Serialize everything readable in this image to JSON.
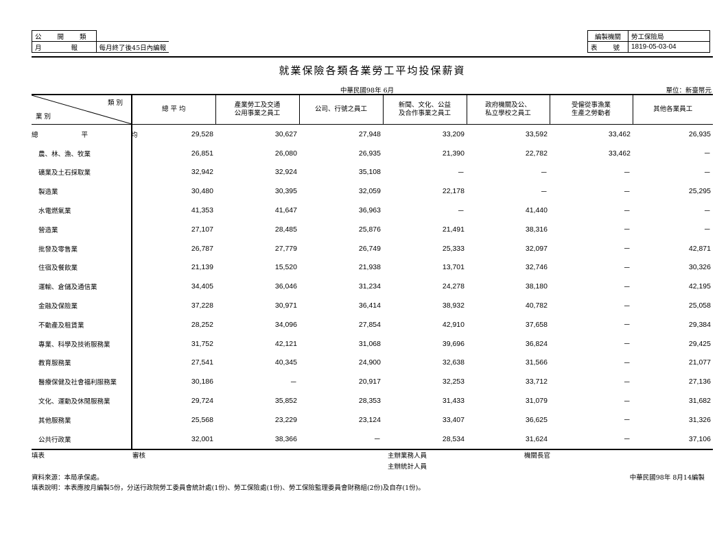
{
  "header": {
    "left_box": [
      {
        "label": "公 開 類",
        "value": ""
      },
      {
        "label": "月 報",
        "value": "每月終了後45日內編報"
      }
    ],
    "right_box": [
      {
        "label": "編製機關",
        "value": "勞工保險局"
      },
      {
        "label": "表 號",
        "value": "1819-05-03-04"
      }
    ]
  },
  "title": "就業保險各類各業勞工平均投保薪資",
  "period": "中華民國98年 6月",
  "unit": "單位：新臺幣元",
  "table": {
    "corner_top": "類 別",
    "corner_bottom": "業 別",
    "columns": [
      "總 平 均",
      "產業勞工及交通\n公用事業之員工",
      "公司、行號之員工",
      "新聞、文化、公益\n及合作事業之員工",
      "政府機關及公、\n私立學校之員工",
      "受僱從事漁業\n生產之勞動者",
      "其他各業員工"
    ],
    "rows": [
      {
        "label": "總 平 均",
        "values": [
          "29,528",
          "30,627",
          "27,948",
          "33,209",
          "33,592",
          "33,462",
          "26,935"
        ]
      },
      {
        "label": "農、林、漁、牧業",
        "values": [
          "26,851",
          "26,080",
          "26,935",
          "21,390",
          "22,782",
          "33,462",
          "－"
        ]
      },
      {
        "label": "礦業及土石採取業",
        "values": [
          "32,942",
          "32,924",
          "35,108",
          "－",
          "－",
          "－",
          "－"
        ]
      },
      {
        "label": "製造業",
        "values": [
          "30,480",
          "30,395",
          "32,059",
          "22,178",
          "－",
          "－",
          "25,295"
        ]
      },
      {
        "label": "水電燃氣業",
        "values": [
          "41,353",
          "41,647",
          "36,963",
          "－",
          "41,440",
          "－",
          "－"
        ]
      },
      {
        "label": "營造業",
        "values": [
          "27,107",
          "28,485",
          "25,876",
          "21,491",
          "38,316",
          "－",
          "－"
        ]
      },
      {
        "label": "批發及零售業",
        "values": [
          "26,787",
          "27,779",
          "26,749",
          "25,333",
          "32,097",
          "－",
          "42,871"
        ]
      },
      {
        "label": "住宿及餐飲業",
        "values": [
          "21,139",
          "15,520",
          "21,938",
          "13,701",
          "32,746",
          "－",
          "30,326"
        ]
      },
      {
        "label": "運輸、倉儲及通信業",
        "values": [
          "34,405",
          "36,046",
          "31,234",
          "24,278",
          "38,180",
          "－",
          "42,195"
        ]
      },
      {
        "label": "金融及保險業",
        "values": [
          "37,228",
          "30,971",
          "36,414",
          "38,932",
          "40,782",
          "－",
          "25,058"
        ]
      },
      {
        "label": "不動產及租賃業",
        "values": [
          "28,252",
          "34,096",
          "27,854",
          "42,910",
          "37,658",
          "－",
          "29,384"
        ]
      },
      {
        "label": "專業、科學及技術服務業",
        "values": [
          "31,752",
          "42,121",
          "31,068",
          "39,696",
          "36,824",
          "－",
          "29,425"
        ]
      },
      {
        "label": "教育服務業",
        "values": [
          "27,541",
          "40,345",
          "24,900",
          "32,638",
          "31,566",
          "－",
          "21,077"
        ]
      },
      {
        "label": "醫療保健及社會福利服務業",
        "values": [
          "30,186",
          "－",
          "20,917",
          "32,253",
          "33,712",
          "－",
          "27,136"
        ]
      },
      {
        "label": "文化、運動及休閒服務業",
        "values": [
          "29,724",
          "35,852",
          "28,353",
          "31,433",
          "31,079",
          "－",
          "31,682"
        ]
      },
      {
        "label": "其他服務業",
        "values": [
          "25,568",
          "23,229",
          "23,124",
          "33,407",
          "36,625",
          "－",
          "31,326"
        ]
      },
      {
        "label": "公共行政業",
        "values": [
          "32,001",
          "38,366",
          "－",
          "28,534",
          "31,624",
          "－",
          "37,106"
        ]
      }
    ]
  },
  "footer": {
    "fill_by": "填表",
    "review": "審核",
    "business_staff": "主辦業務人員",
    "stat_staff": "主辦統計人員",
    "chief": "機關長官",
    "source": "資料來源：本局承保處。",
    "date": "中華民國98年 8月14編製",
    "note": "填表說明：本表應按月編製5份，分送行政院勞工委員會統計處(1份)、勞工保險處(1份)、勞工保險監理委員會財務組(2份)及自存(1份)。"
  }
}
